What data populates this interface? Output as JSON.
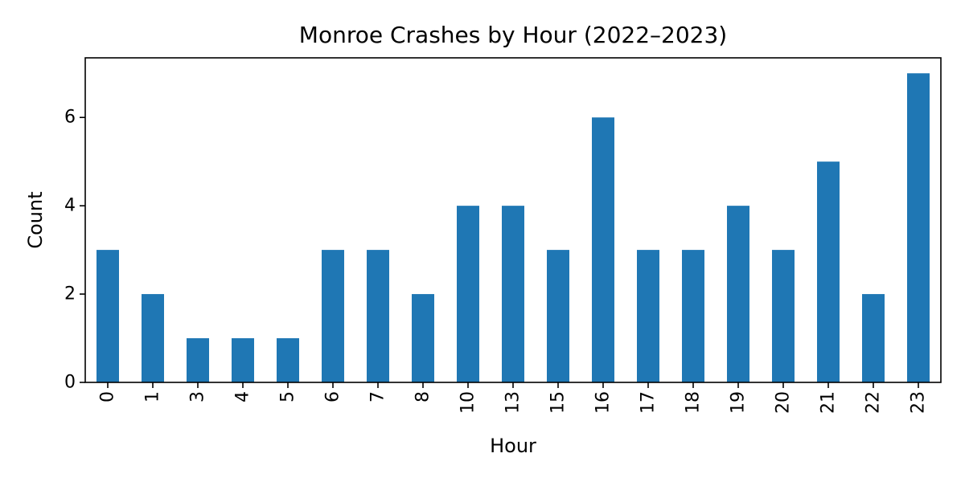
{
  "chart_data": {
    "type": "bar",
    "title": "Monroe Crashes by Hour (2022–2023)",
    "xlabel": "Hour",
    "ylabel": "Count",
    "categories": [
      "0",
      "1",
      "3",
      "4",
      "5",
      "6",
      "7",
      "8",
      "10",
      "13",
      "15",
      "16",
      "17",
      "18",
      "19",
      "20",
      "21",
      "22",
      "23"
    ],
    "values": [
      3,
      2,
      1,
      1,
      1,
      3,
      3,
      2,
      4,
      4,
      3,
      6,
      3,
      3,
      4,
      3,
      5,
      2,
      7
    ],
    "ylim": [
      0,
      7.35
    ],
    "yticks": [
      0,
      2,
      4,
      6
    ],
    "x_tick_rotation": "vertical",
    "grid": false,
    "legend": "none",
    "bar_color": "#1f77b4"
  }
}
